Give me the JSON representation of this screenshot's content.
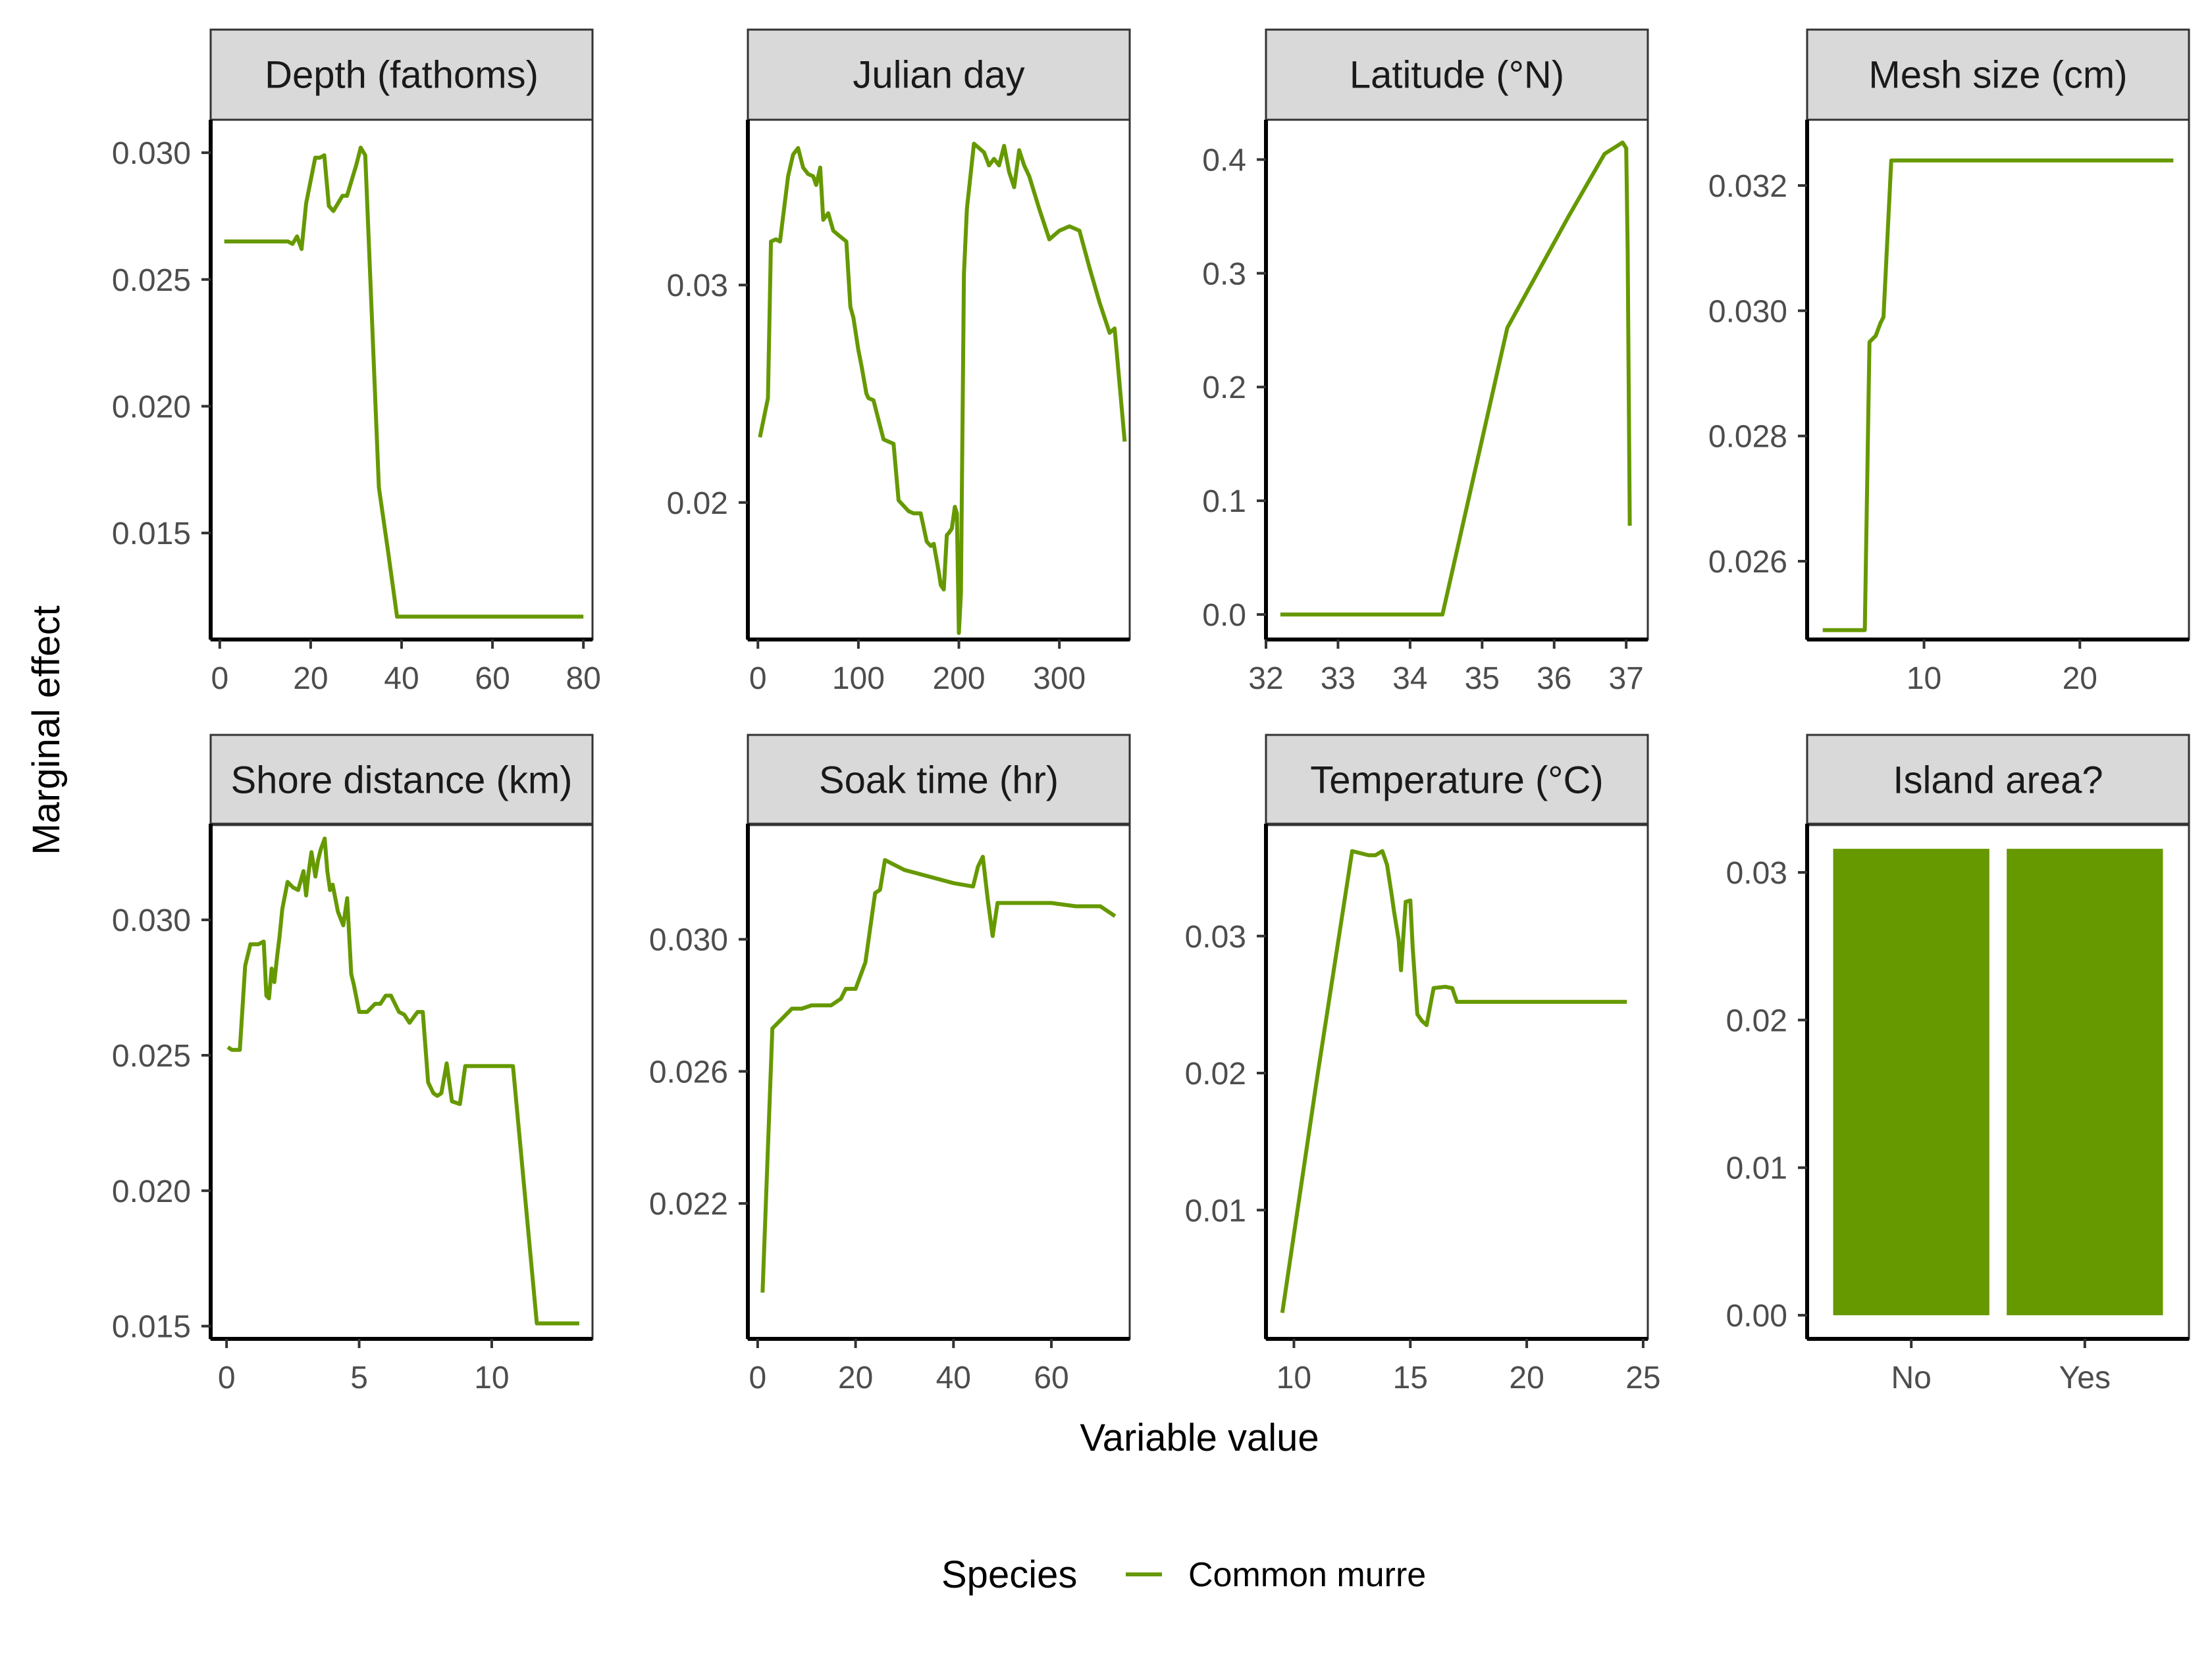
{
  "figure": {
    "xlabel": "Variable value",
    "ylabel": "Marginal effect",
    "legend": {
      "title": "Species",
      "entries": [
        {
          "name": "Common murre",
          "color": "#669900"
        }
      ],
      "placement": "bottom"
    },
    "series_color": "#669900",
    "grid": false
  },
  "chart_data": [
    {
      "type": "line",
      "title": "Depth (fathoms)",
      "xlim": [
        -2,
        82
      ],
      "ylim": [
        0.0108,
        0.0313
      ],
      "xticks": [
        0,
        20,
        40,
        60,
        80
      ],
      "xtick_labels": [
        "0",
        "20",
        "40",
        "60",
        "80"
      ],
      "yticks": [
        0.015,
        0.02,
        0.025,
        0.03
      ],
      "ytick_labels": [
        "0.015",
        "0.020",
        "0.025",
        "0.030"
      ],
      "series": [
        {
          "name": "Common murre",
          "x": [
            1,
            5,
            10,
            15,
            16,
            17,
            18,
            19,
            21,
            22,
            23,
            24,
            25,
            26,
            27,
            28,
            29,
            30,
            31,
            32,
            35,
            37,
            39,
            45,
            50,
            60,
            70,
            80
          ],
          "y": [
            0.0265,
            0.0265,
            0.0265,
            0.0265,
            0.0264,
            0.0267,
            0.0262,
            0.028,
            0.0298,
            0.0298,
            0.0299,
            0.0279,
            0.0277,
            0.028,
            0.0283,
            0.0283,
            0.0289,
            0.0295,
            0.0302,
            0.0299,
            0.0168,
            0.0143,
            0.0117,
            0.0117,
            0.0117,
            0.0117,
            0.0117,
            0.0117
          ]
        }
      ]
    },
    {
      "type": "line",
      "title": "Julian day",
      "xlim": [
        -10,
        370
      ],
      "ylim": [
        0.0137,
        0.0376
      ],
      "xticks": [
        0,
        100,
        200,
        300
      ],
      "xtick_labels": [
        "0",
        "100",
        "200",
        "300"
      ],
      "yticks": [
        0.02,
        0.03
      ],
      "ytick_labels": [
        "0.02",
        "0.03"
      ],
      "series": [
        {
          "name": "Common murre",
          "x": [
            2,
            10,
            13,
            18,
            22,
            30,
            35,
            40,
            45,
            50,
            55,
            58,
            62,
            65,
            70,
            75,
            80,
            88,
            92,
            95,
            100,
            103,
            108,
            110,
            115,
            125,
            130,
            135,
            140,
            150,
            155,
            162,
            168,
            172,
            175,
            180,
            182,
            185,
            188,
            190,
            193,
            196,
            198,
            200,
            202,
            205,
            208,
            215,
            220,
            225,
            230,
            235,
            240,
            245,
            250,
            255,
            260,
            265,
            270,
            280,
            290,
            300,
            310,
            315,
            320,
            330,
            340,
            350,
            355,
            365
          ],
          "y": [
            0.023,
            0.0248,
            0.032,
            0.0321,
            0.032,
            0.035,
            0.036,
            0.0363,
            0.0354,
            0.0351,
            0.035,
            0.0346,
            0.0354,
            0.033,
            0.0333,
            0.0325,
            0.0323,
            0.032,
            0.029,
            0.0285,
            0.027,
            0.0263,
            0.025,
            0.0248,
            0.0247,
            0.0229,
            0.0228,
            0.0227,
            0.0201,
            0.0196,
            0.0195,
            0.0195,
            0.0182,
            0.018,
            0.0181,
            0.0168,
            0.0162,
            0.016,
            0.0185,
            0.0186,
            0.0188,
            0.0198,
            0.0195,
            0.014,
            0.0158,
            0.0305,
            0.0335,
            0.0365,
            0.0363,
            0.0361,
            0.0355,
            0.0358,
            0.0355,
            0.0364,
            0.0352,
            0.0345,
            0.0362,
            0.0355,
            0.035,
            0.0335,
            0.0321,
            0.0325,
            0.0327,
            0.0326,
            0.0325,
            0.0308,
            0.0292,
            0.0278,
            0.028,
            0.0228
          ]
        }
      ]
    },
    {
      "type": "line",
      "title": "Latitude (°N)",
      "xlim": [
        32,
        37.3
      ],
      "ylim": [
        -0.022,
        0.435
      ],
      "xticks": [
        32,
        33,
        34,
        35,
        36,
        37
      ],
      "xtick_labels": [
        "32",
        "33",
        "34",
        "35",
        "36",
        "37"
      ],
      "yticks": [
        0,
        0.1,
        0.2,
        0.3,
        0.4
      ],
      "ytick_labels": [
        "0.0",
        "0.1",
        "0.2",
        "0.3",
        "0.4"
      ],
      "series": [
        {
          "name": "Common murre",
          "x": [
            32.2,
            33,
            34,
            34.45,
            35.35,
            36.2,
            36.7,
            36.9,
            36.95,
            37.0,
            37.02,
            37.05
          ],
          "y": [
            0,
            0,
            0,
            0,
            0.252,
            0.35,
            0.405,
            0.413,
            0.415,
            0.41,
            0.32,
            0.078
          ]
        }
      ]
    },
    {
      "type": "line",
      "title": "Mesh size (cm)",
      "xlim": [
        2.5,
        27
      ],
      "ylim": [
        0.02475,
        0.03305
      ],
      "xticks": [
        10,
        20
      ],
      "xtick_labels": [
        "10",
        "20"
      ],
      "yticks": [
        0.026,
        0.028,
        0.03,
        0.032
      ],
      "ytick_labels": [
        "0.026",
        "0.028",
        "0.030",
        "0.032"
      ],
      "series": [
        {
          "name": "Common murre",
          "x": [
            3.5,
            5,
            6.2,
            6.5,
            6.9,
            7.2,
            7.4,
            7.9,
            10,
            15,
            20,
            26
          ],
          "y": [
            0.0249,
            0.0249,
            0.0249,
            0.0295,
            0.0296,
            0.0298,
            0.0299,
            0.0324,
            0.0324,
            0.0324,
            0.0324,
            0.0324
          ]
        }
      ]
    },
    {
      "type": "line",
      "title": "Shore distance (km)",
      "xlim": [
        -0.6,
        13.8
      ],
      "ylim": [
        0.01453,
        0.03355
      ],
      "xticks": [
        0,
        5,
        10
      ],
      "xtick_labels": [
        "0",
        "5",
        "10"
      ],
      "yticks": [
        0.015,
        0.02,
        0.025,
        0.03
      ],
      "ytick_labels": [
        "0.015",
        "0.020",
        "0.025",
        "0.030"
      ],
      "series": [
        {
          "name": "Common murre",
          "x": [
            0.05,
            0.2,
            0.5,
            0.7,
            0.9,
            1.2,
            1.4,
            1.5,
            1.6,
            1.7,
            1.8,
            1.9,
            2.0,
            2.1,
            2.3,
            2.5,
            2.7,
            2.9,
            3.0,
            3.1,
            3.2,
            3.35,
            3.45,
            3.55,
            3.7,
            3.8,
            3.9,
            4.0,
            4.2,
            4.4,
            4.55,
            4.7,
            4.8,
            5.0,
            5.3,
            5.6,
            5.8,
            6.0,
            6.2,
            6.5,
            6.7,
            6.9,
            7.2,
            7.4,
            7.6,
            7.8,
            7.95,
            8.1,
            8.3,
            8.5,
            8.8,
            9.0,
            10,
            10.8,
            11.7,
            12.5,
            13.3
          ],
          "y": [
            0.0253,
            0.0252,
            0.0252,
            0.0283,
            0.0291,
            0.0291,
            0.0292,
            0.0272,
            0.0271,
            0.0282,
            0.0277,
            0.0286,
            0.0294,
            0.0304,
            0.0314,
            0.0312,
            0.0311,
            0.0318,
            0.0309,
            0.0318,
            0.0325,
            0.0316,
            0.0322,
            0.0326,
            0.033,
            0.0318,
            0.0311,
            0.0313,
            0.0303,
            0.0298,
            0.0308,
            0.028,
            0.0276,
            0.0266,
            0.0266,
            0.0269,
            0.0269,
            0.0272,
            0.0272,
            0.0266,
            0.0265,
            0.0262,
            0.0266,
            0.0266,
            0.024,
            0.0236,
            0.0235,
            0.0236,
            0.0247,
            0.0233,
            0.0232,
            0.0246,
            0.0246,
            0.0246,
            0.0151,
            0.0151,
            0.0151
          ]
        }
      ]
    },
    {
      "type": "line",
      "title": "Soak time (hr)",
      "xlim": [
        -2,
        76
      ],
      "ylim": [
        0.0179,
        0.0335
      ],
      "xticks": [
        0,
        20,
        40,
        60
      ],
      "xtick_labels": [
        "0",
        "20",
        "40",
        "60"
      ],
      "yticks": [
        0.022,
        0.026,
        0.03
      ],
      "ytick_labels": [
        "0.022",
        "0.026",
        "0.030"
      ],
      "series": [
        {
          "name": "Common murre",
          "x": [
            1,
            3,
            5,
            7,
            9,
            11,
            13,
            15,
            17,
            18,
            19,
            20,
            22,
            24,
            25,
            26,
            30,
            40,
            44,
            45,
            46,
            47,
            48,
            49,
            55,
            60,
            65,
            70,
            72,
            73
          ],
          "y": [
            0.0193,
            0.0273,
            0.0276,
            0.0279,
            0.0279,
            0.028,
            0.028,
            0.028,
            0.0282,
            0.0285,
            0.0285,
            0.0285,
            0.0293,
            0.0314,
            0.0315,
            0.0324,
            0.0321,
            0.0317,
            0.0316,
            0.0322,
            0.0325,
            0.0312,
            0.0301,
            0.0311,
            0.0311,
            0.0311,
            0.031,
            0.031,
            0.0308,
            0.0307
          ]
        }
      ]
    },
    {
      "type": "line",
      "title": "Temperature (°C)",
      "xlim": [
        8.8,
        25.2
      ],
      "ylim": [
        0.0006,
        0.0382
      ],
      "xticks": [
        10,
        15,
        20,
        25
      ],
      "xtick_labels": [
        "10",
        "15",
        "20",
        "25"
      ],
      "yticks": [
        0.01,
        0.02,
        0.03
      ],
      "ytick_labels": [
        "0.01",
        "0.02",
        "0.03"
      ],
      "series": [
        {
          "name": "Common murre",
          "x": [
            9.5,
            11,
            12.5,
            13.2,
            13.5,
            13.8,
            14.0,
            14.2,
            14.3,
            14.5,
            14.6,
            14.8,
            15.0,
            15.1,
            15.3,
            15.5,
            15.7,
            16,
            16.5,
            16.8,
            17,
            17.5,
            18,
            20,
            22,
            24.3
          ],
          "y": [
            0.0025,
            0.0197,
            0.0362,
            0.0359,
            0.0359,
            0.0362,
            0.0352,
            0.033,
            0.0318,
            0.0297,
            0.0275,
            0.0325,
            0.0326,
            0.0292,
            0.0243,
            0.0238,
            0.0235,
            0.0262,
            0.0263,
            0.0262,
            0.0252,
            0.0252,
            0.0252,
            0.0252,
            0.0252,
            0.0252
          ]
        }
      ]
    },
    {
      "type": "bar",
      "title": "Island area?",
      "categories": [
        "No",
        "Yes"
      ],
      "values": [
        0.0316,
        0.0316
      ],
      "ylim": [
        -0.0016,
        0.0333
      ],
      "yticks": [
        0,
        0.01,
        0.02,
        0.03
      ],
      "ytick_labels": [
        "0.00",
        "0.01",
        "0.02",
        "0.03"
      ]
    }
  ]
}
